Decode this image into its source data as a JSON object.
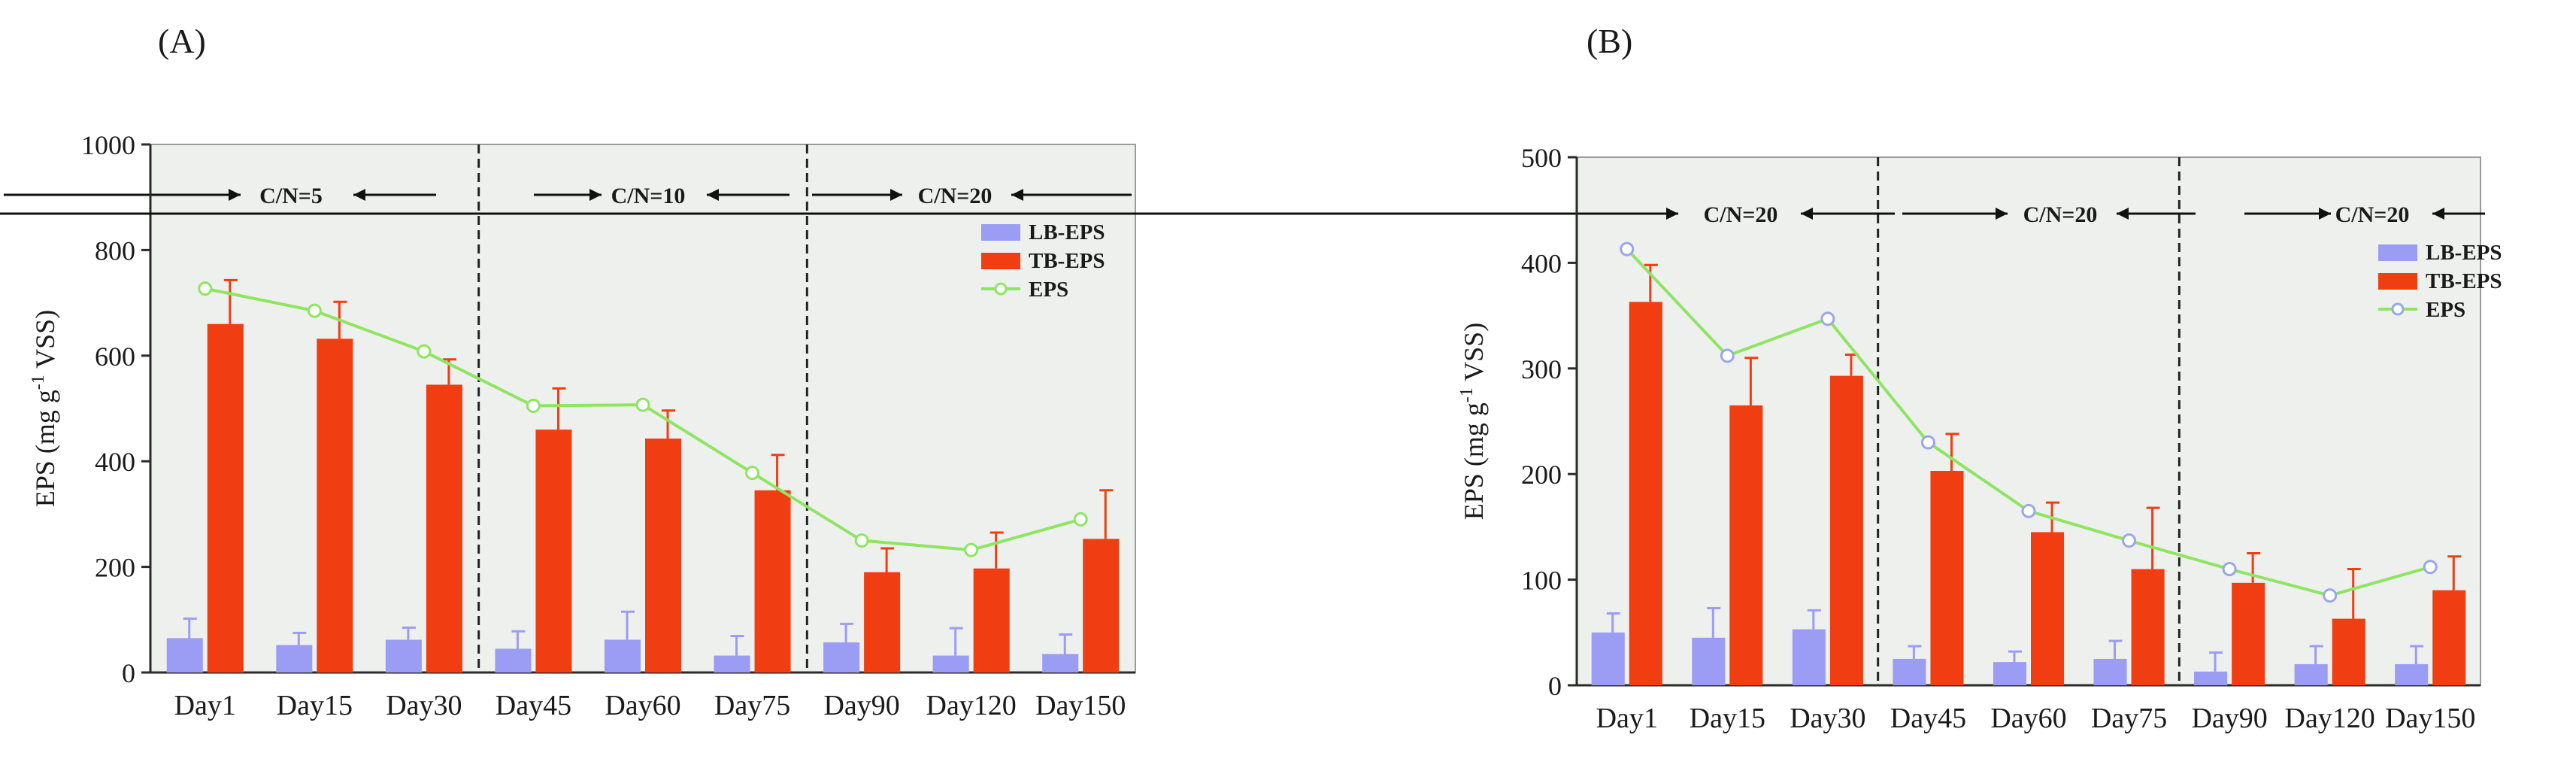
{
  "colors": {
    "lb": "#9b9cf3",
    "tb": "#f03d12",
    "eps": "#8ee562",
    "plot_bg": "#eef0ee",
    "axis": "#2a2a2a"
  },
  "chart_data": [
    {
      "id": "A",
      "panel_label": "(A)",
      "type": "bar",
      "categories": [
        "Day1",
        "Day15",
        "Day30",
        "Day45",
        "Day60",
        "Day75",
        "Day90",
        "Day120",
        "Day150"
      ],
      "ylabel_main": "EPS (mg g",
      "ylabel_sup": "-1",
      "ylabel_tail": " VSS)",
      "ylim": [
        0,
        1000
      ],
      "yticks": [
        "0",
        "200",
        "400",
        "600",
        "800",
        "1000"
      ],
      "ytick_values": [
        0,
        200,
        400,
        600,
        800,
        1000
      ],
      "phase_dividers_after": [
        2,
        5
      ],
      "phases": [
        "C/N=5",
        "C/N=10",
        "C/N=20"
      ],
      "legend": [
        "LB-EPS",
        "TB-EPS",
        "EPS"
      ],
      "series": [
        {
          "name": "LB-EPS",
          "kind": "bar",
          "values": [
            65,
            52,
            62,
            45,
            62,
            32,
            57,
            32,
            35
          ],
          "errors": [
            37,
            23,
            23,
            33,
            53,
            37,
            35,
            52,
            37
          ]
        },
        {
          "name": "TB-EPS",
          "kind": "bar",
          "values": [
            660,
            632,
            545,
            460,
            443,
            345,
            190,
            197,
            253
          ],
          "errors": [
            83,
            70,
            48,
            78,
            53,
            67,
            45,
            68,
            92
          ]
        },
        {
          "name": "EPS",
          "kind": "line",
          "values": [
            727,
            685,
            608,
            505,
            507,
            378,
            250,
            232,
            290
          ]
        }
      ]
    },
    {
      "id": "B",
      "panel_label": "(B)",
      "type": "bar",
      "categories": [
        "Day1",
        "Day15",
        "Day30",
        "Day45",
        "Day60",
        "Day75",
        "Day90",
        "Day120",
        "Day150"
      ],
      "ylabel_main": "EPS (mg g",
      "ylabel_sup": "-1",
      "ylabel_tail": " VSS)",
      "ylim": [
        0,
        500
      ],
      "yticks": [
        "0",
        "100",
        "200",
        "300",
        "400",
        "500"
      ],
      "ytick_values": [
        0,
        100,
        200,
        300,
        400,
        500
      ],
      "phase_dividers_after": [
        2,
        5
      ],
      "phases": [
        "C/N=20",
        "C/N=20",
        "C/N=20"
      ],
      "legend": [
        "LB-EPS",
        "TB-EPS",
        "EPS"
      ],
      "series": [
        {
          "name": "LB-EPS",
          "kind": "bar",
          "values": [
            50,
            45,
            53,
            25,
            22,
            25,
            13,
            20,
            20
          ],
          "errors": [
            18,
            28,
            18,
            12,
            10,
            17,
            18,
            17,
            17
          ],
          "anchored": true
        },
        {
          "name": "TB-EPS",
          "kind": "bar",
          "values": [
            363,
            265,
            293,
            203,
            145,
            110,
            97,
            63,
            90
          ],
          "errors": [
            35,
            45,
            20,
            35,
            28,
            58,
            28,
            47,
            32
          ]
        },
        {
          "name": "EPS",
          "kind": "line",
          "values": [
            413,
            312,
            347,
            230,
            165,
            137,
            110,
            85,
            112
          ]
        }
      ]
    }
  ]
}
